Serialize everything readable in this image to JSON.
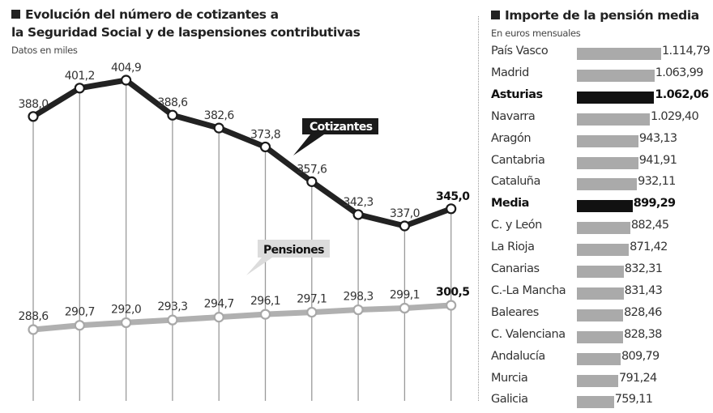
{
  "left_panel": {
    "title_line1": "Evolución del número de cotizantes a",
    "title_line2": "la Seguridad Social y de laspensiones contributivas",
    "subtitle": "Datos en miles"
  },
  "right_panel": {
    "title": "Importe de la pensión media",
    "subtitle": "En euros mensuales"
  },
  "colors": {
    "cotizantes": "#222222",
    "pensiones": "#b0b0b0",
    "bar_default": "#aaaaaa",
    "bar_highlight": "#111111"
  },
  "chart_data": [
    {
      "type": "line",
      "title": "Evolución del número de cotizantes a la Seguridad Social y de laspensiones contributivas",
      "ylabel": "Datos en miles",
      "x": [
        1,
        2,
        3,
        4,
        5,
        6,
        7,
        8,
        9,
        10
      ],
      "ylim": [
        240,
        420
      ],
      "grid": "vertical",
      "series": [
        {
          "name": "Cotizantes",
          "values": [
            388.0,
            401.2,
            404.9,
            388.6,
            382.6,
            373.8,
            357.6,
            342.3,
            337.0,
            345.0
          ],
          "labels": [
            "388,0",
            "401,2",
            "404,9",
            "388,6",
            "382,6",
            "373,8",
            "357,6",
            "342,3",
            "337,0",
            "345,0"
          ]
        },
        {
          "name": "Pensiones",
          "values": [
            288.6,
            290.7,
            292.0,
            293.3,
            294.7,
            296.1,
            297.1,
            298.3,
            299.1,
            300.5
          ],
          "labels": [
            "288,6",
            "290,7",
            "292,0",
            "293,3",
            "294,7",
            "296,1",
            "297,1",
            "298,3",
            "299,1",
            "300,5"
          ]
        }
      ]
    },
    {
      "type": "bar",
      "orientation": "horizontal",
      "title": "Importe de la pensión media",
      "subtitle": "En euros mensuales",
      "categories": [
        "País Vasco",
        "Madrid",
        "Asturias",
        "Navarra",
        "Aragón",
        "Cantabria",
        "Cataluña",
        "Media",
        "C. y León",
        "La Rioja",
        "Canarias",
        "C.-La Mancha",
        "Baleares",
        "C. Valenciana",
        "Andalucía",
        "Murcia",
        "Galicia"
      ],
      "values": [
        1114.79,
        1063.99,
        1062.06,
        1029.4,
        943.13,
        941.91,
        932.11,
        899.29,
        882.45,
        871.42,
        832.31,
        831.43,
        828.46,
        828.38,
        809.79,
        791.24,
        759.11
      ],
      "labels": [
        "1.114,79",
        "1.063,99",
        "1.062,06",
        "1.029,40",
        "943,13",
        "941,91",
        "932,11",
        "899,29",
        "882,45",
        "871,42",
        "832,31",
        "831,43",
        "828,46",
        "828,38",
        "809,79",
        "791,24",
        "759,11"
      ],
      "highlighted": [
        "Asturias",
        "Media"
      ]
    }
  ]
}
